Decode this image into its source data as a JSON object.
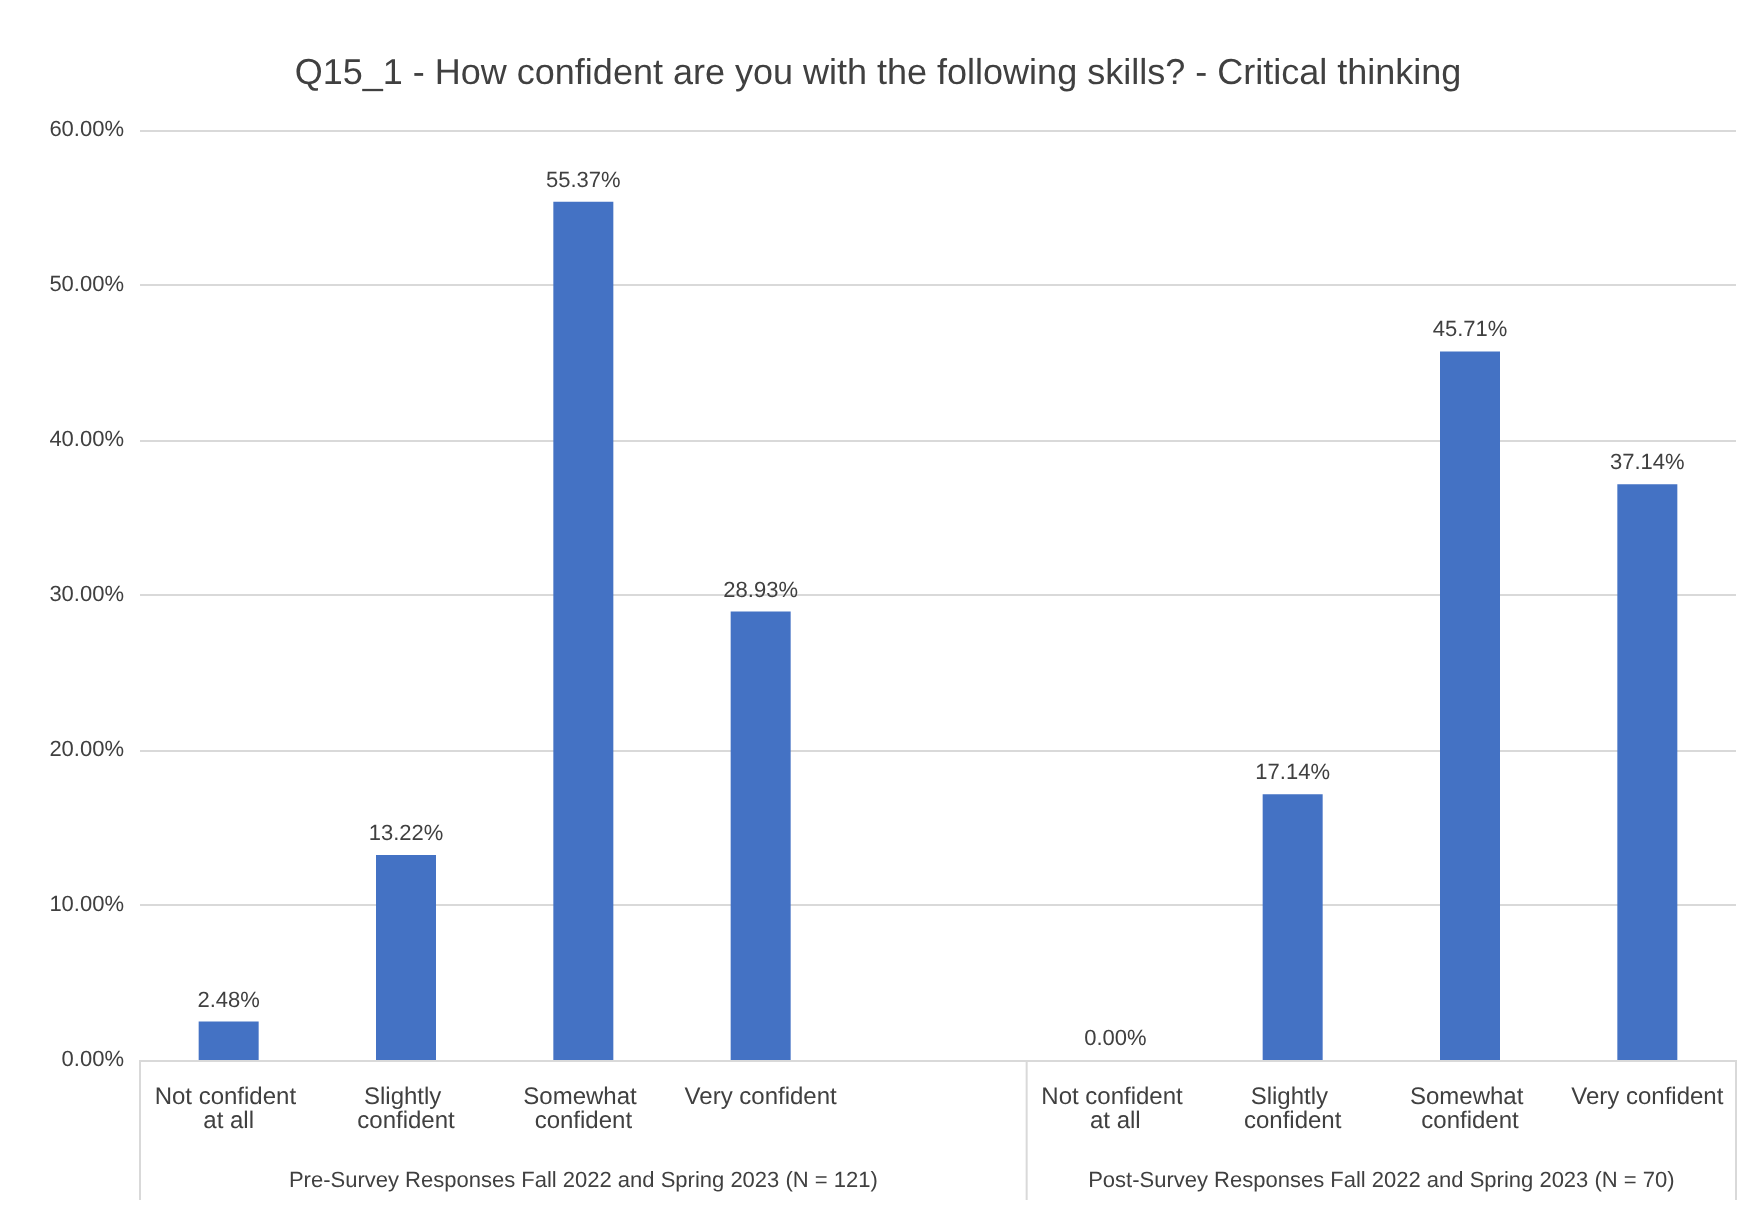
{
  "chart_data": {
    "type": "bar",
    "title": "Q15_1 - How confident are you with the following skills? - Critical thinking",
    "categories": [
      "Not confident at all",
      "Slightly confident",
      "Somewhat confident",
      "Very confident",
      null,
      "Not confident at all",
      "Slightly confident",
      "Somewhat confident",
      "Very confident"
    ],
    "values": [
      2.48,
      13.22,
      55.37,
      28.93,
      null,
      0,
      17.14,
      45.71,
      37.14
    ],
    "value_labels": [
      "2.48%",
      "13.22%",
      "55.37%",
      "28.93%",
      null,
      "0.00%",
      "17.14%",
      "45.71%",
      "37.14%"
    ],
    "color": "#4472c4",
    "ylim": [
      0,
      60
    ],
    "yticks": [
      {
        "value": 0,
        "label": "0.00%"
      },
      {
        "value": 10,
        "label": "10.00%"
      },
      {
        "value": 20,
        "label": "20.00%"
      },
      {
        "value": 30,
        "label": "30.00%"
      },
      {
        "value": 40,
        "label": "40.00%"
      },
      {
        "value": 50,
        "label": "50.00%"
      },
      {
        "value": 60,
        "label": "60.00%"
      }
    ],
    "grid": "y",
    "annotations": [
      "Pre-Survey Responses Fall 2022 and Spring 2023 (N = 121)",
      "Post-Survey Responses Fall 2022 and Spring 2023 (N = 70)"
    ]
  }
}
